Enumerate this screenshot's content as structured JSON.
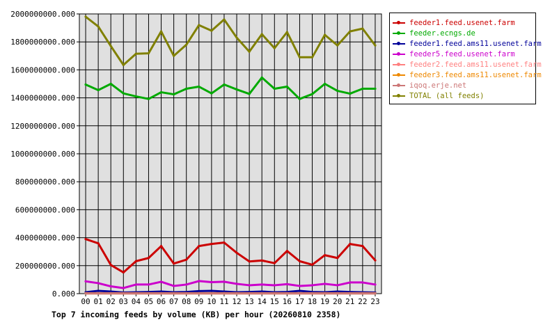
{
  "chart_data": {
    "type": "line",
    "title": "Top 7 incoming feeds by volume (KB) per hour (20260810 2358)",
    "x": [
      "00",
      "01",
      "02",
      "03",
      "04",
      "05",
      "06",
      "07",
      "08",
      "09",
      "10",
      "11",
      "12",
      "13",
      "14",
      "15",
      "16",
      "17",
      "18",
      "19",
      "20",
      "21",
      "22",
      "23"
    ],
    "ylim": [
      0,
      2000000000
    ],
    "yticks": [
      "0.000",
      "200000000.000",
      "400000000.000",
      "600000000.000",
      "800000000.000",
      "1000000000.000",
      "1200000000.000",
      "1400000000.000",
      "1600000000.000",
      "1800000000.000",
      "2000000000.000"
    ],
    "grid": true,
    "legend_position": "right",
    "series": [
      {
        "name": "feeder1.feed.usenet.farm",
        "color": "#cc0000",
        "values": [
          390000000,
          360000000,
          205000000,
          152000000,
          232000000,
          255000000,
          340000000,
          215000000,
          243000000,
          340000000,
          355000000,
          365000000,
          292000000,
          230000000,
          237000000,
          218000000,
          305000000,
          232000000,
          207000000,
          275000000,
          255000000,
          355000000,
          340000000,
          238000000
        ]
      },
      {
        "name": "feeder.ecngs.de",
        "color": "#00aa00",
        "values": [
          1495000000,
          1455000000,
          1500000000,
          1432000000,
          1410000000,
          1392000000,
          1440000000,
          1425000000,
          1465000000,
          1480000000,
          1432000000,
          1495000000,
          1460000000,
          1428000000,
          1545000000,
          1465000000,
          1480000000,
          1392000000,
          1427000000,
          1500000000,
          1450000000,
          1430000000,
          1465000000,
          1465000000
        ]
      },
      {
        "name": "feeder1.feed.ams11.usenet.farm",
        "color": "#000099",
        "values": [
          10000000,
          20000000,
          15000000,
          8000000,
          10000000,
          12000000,
          15000000,
          10000000,
          12000000,
          18000000,
          20000000,
          15000000,
          10000000,
          12000000,
          15000000,
          10000000,
          12000000,
          20000000,
          12000000,
          10000000,
          15000000,
          12000000,
          10000000,
          8000000
        ]
      },
      {
        "name": "feeder5.feed.usenet.farm",
        "color": "#cc00cc",
        "values": [
          88000000,
          75000000,
          52000000,
          40000000,
          65000000,
          65000000,
          85000000,
          55000000,
          65000000,
          90000000,
          82000000,
          85000000,
          70000000,
          60000000,
          65000000,
          60000000,
          68000000,
          55000000,
          60000000,
          70000000,
          60000000,
          80000000,
          80000000,
          65000000
        ]
      },
      {
        "name": "feeder2.feed.ams11.usenet.farm",
        "color": "#ff8080",
        "values": [
          3000000,
          3000000,
          3000000,
          3000000,
          3000000,
          3000000,
          3000000,
          3000000,
          3000000,
          3000000,
          3000000,
          3000000,
          3000000,
          3000000,
          3000000,
          3000000,
          3000000,
          3000000,
          3000000,
          3000000,
          3000000,
          3000000,
          3000000,
          3000000
        ]
      },
      {
        "name": "feeder3.feed.ams11.usenet.farm",
        "color": "#ee8800",
        "values": [
          2000000,
          2000000,
          2000000,
          2000000,
          2000000,
          2000000,
          2000000,
          2000000,
          2000000,
          2000000,
          2000000,
          2000000,
          2000000,
          2000000,
          2000000,
          2000000,
          2000000,
          2000000,
          2000000,
          2000000,
          2000000,
          2000000,
          2000000,
          2000000
        ]
      },
      {
        "name": "iqoq.erje.net",
        "color": "#cc7777",
        "values": [
          1000000,
          1000000,
          1000000,
          1000000,
          1000000,
          1000000,
          1000000,
          1000000,
          1000000,
          1000000,
          1000000,
          1000000,
          1000000,
          1000000,
          1000000,
          1000000,
          1000000,
          1000000,
          1000000,
          1000000,
          1000000,
          1000000,
          1000000,
          1000000
        ]
      },
      {
        "name": "TOTAL (all feeds)",
        "color": "#808000",
        "values": [
          1980000000,
          1910000000,
          1770000000,
          1635000000,
          1715000000,
          1718000000,
          1875000000,
          1700000000,
          1780000000,
          1920000000,
          1880000000,
          1960000000,
          1830000000,
          1730000000,
          1855000000,
          1755000000,
          1870000000,
          1690000000,
          1690000000,
          1850000000,
          1775000000,
          1875000000,
          1895000000,
          1775000000
        ]
      }
    ]
  }
}
